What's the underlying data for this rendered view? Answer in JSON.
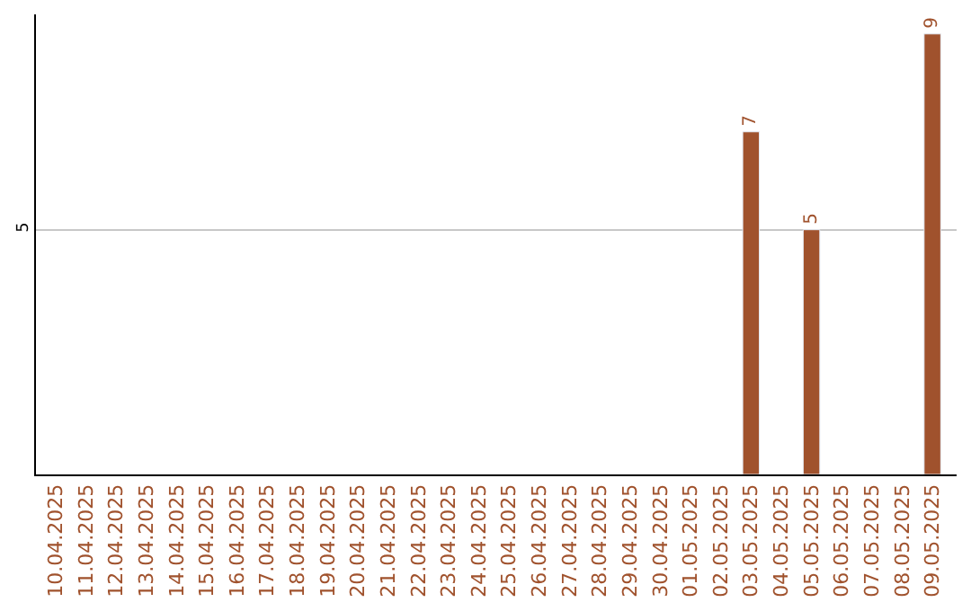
{
  "chart_data": {
    "type": "bar",
    "categories": [
      "10.04.2025",
      "11.04.2025",
      "12.04.2025",
      "13.04.2025",
      "14.04.2025",
      "15.04.2025",
      "16.04.2025",
      "17.04.2025",
      "18.04.2025",
      "19.04.2025",
      "20.04.2025",
      "21.04.2025",
      "22.04.2025",
      "23.04.2025",
      "24.04.2025",
      "25.04.2025",
      "26.04.2025",
      "27.04.2025",
      "28.04.2025",
      "29.04.2025",
      "30.04.2025",
      "01.05.2025",
      "02.05.2025",
      "03.05.2025",
      "04.05.2025",
      "05.05.2025",
      "06.05.2025",
      "07.05.2025",
      "08.05.2025",
      "09.05.2025"
    ],
    "values": [
      null,
      null,
      null,
      null,
      null,
      null,
      null,
      null,
      null,
      null,
      null,
      null,
      null,
      null,
      null,
      null,
      null,
      null,
      null,
      null,
      null,
      null,
      null,
      7,
      null,
      5,
      null,
      null,
      null,
      9
    ],
    "data_labels": true,
    "color": "#a0522d",
    "ylim": [
      0,
      9.4
    ],
    "yticks": [
      5
    ],
    "grid": "y",
    "legend": false
  }
}
